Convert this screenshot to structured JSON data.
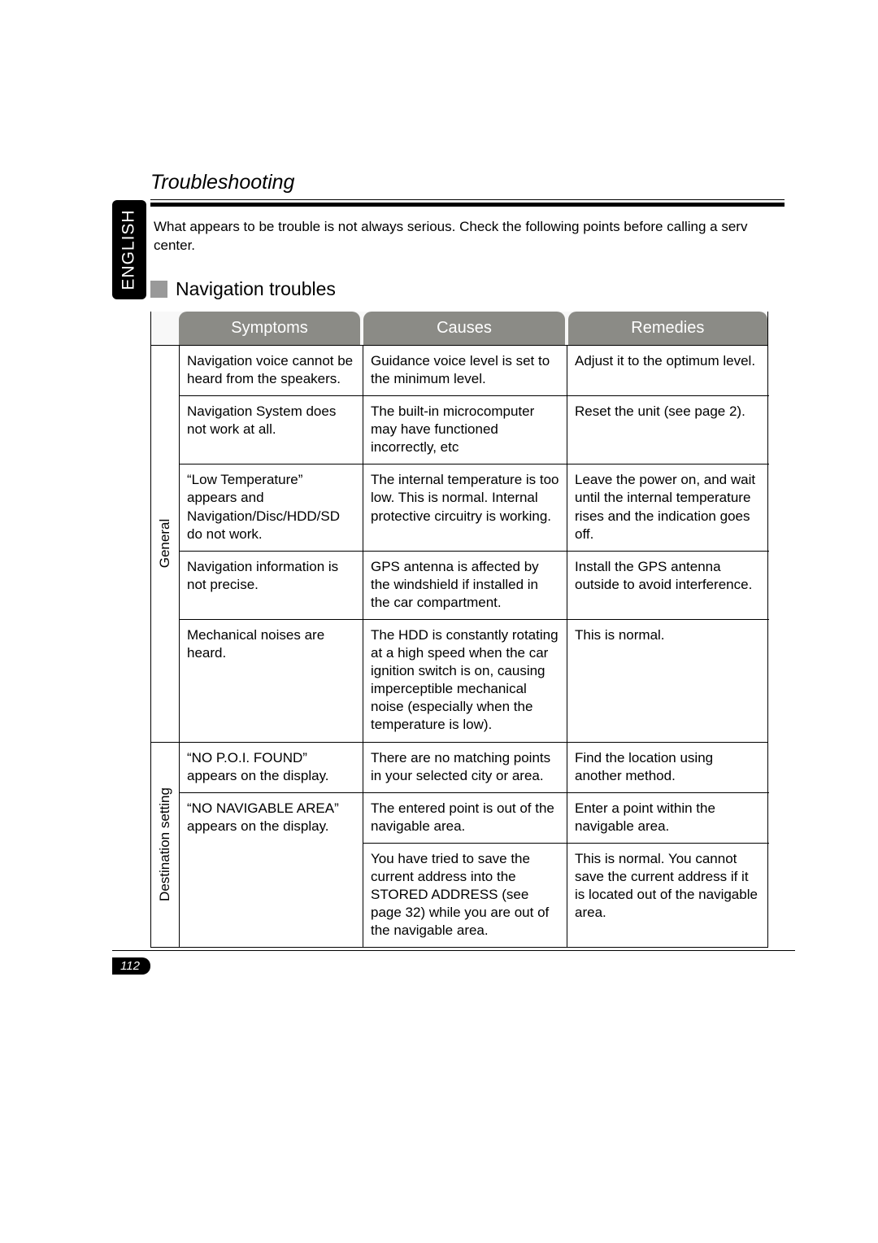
{
  "title": "Troubleshooting",
  "language_tab": "ENGLISH",
  "intro_text": "What appears to be trouble is not always serious. Check the following points before calling a serv center.",
  "section_heading": "Navigation troubles",
  "headers": {
    "symptoms": "Symptoms",
    "causes": "Causes",
    "remedies": "Remedies"
  },
  "groups": [
    {
      "label": "General",
      "rows": [
        {
          "symptom": "Navigation voice cannot be heard from the speakers.",
          "cause": "Guidance voice level is set to the minimum level.",
          "remedy": "Adjust it to the optimum level."
        },
        {
          "symptom": "Navigation System does not work at all.",
          "cause": "The built-in microcomputer may have functioned incorrectly, etc",
          "remedy": "Reset the unit (see page 2)."
        },
        {
          "symptom": "“Low Temperature” appears and Navigation/Disc/HDD/SD do not work.",
          "cause": "The internal temperature is too low. This is normal. Internal protective circuitry is working.",
          "remedy": "Leave the power on, and wait until the internal temperature rises and the indication goes off."
        },
        {
          "symptom": "Navigation information is not precise.",
          "cause": "GPS antenna is affected by the windshield if installed in the car compartment.",
          "remedy": "Install the GPS antenna outside to avoid interference."
        },
        {
          "symptom": "Mechanical noises are heard.",
          "cause": "The HDD is constantly rotating at a high speed when the car ignition switch is on, causing imperceptible mechanical noise (especially when the temperature is low).",
          "remedy": "This is normal."
        }
      ]
    },
    {
      "label": "Destination setting",
      "rows_simple": [
        {
          "symptom": "“NO P.O.I. FOUND” appears on the display.",
          "cause": "There are no matching points in your selected city or area.",
          "remedy": "Find the location using another method."
        }
      ],
      "merged": {
        "symptom": "“NO NAVIGABLE AREA” appears on the display.",
        "subrows": [
          {
            "cause": "The entered point is out of the navigable area.",
            "remedy": "Enter a point within the navigable area."
          },
          {
            "cause": "You have tried to save the current address into the STORED ADDRESS (see page 32) while you are out of the navigable area.",
            "remedy": "This is normal. You cannot save the current address if it is located out of the navigable area."
          }
        ]
      }
    }
  ],
  "page_number": "112",
  "colors": {
    "header_bg": "#8b8b86",
    "header_text": "#ffffff",
    "bullet": "#999999",
    "tab_bg": "#000000"
  }
}
